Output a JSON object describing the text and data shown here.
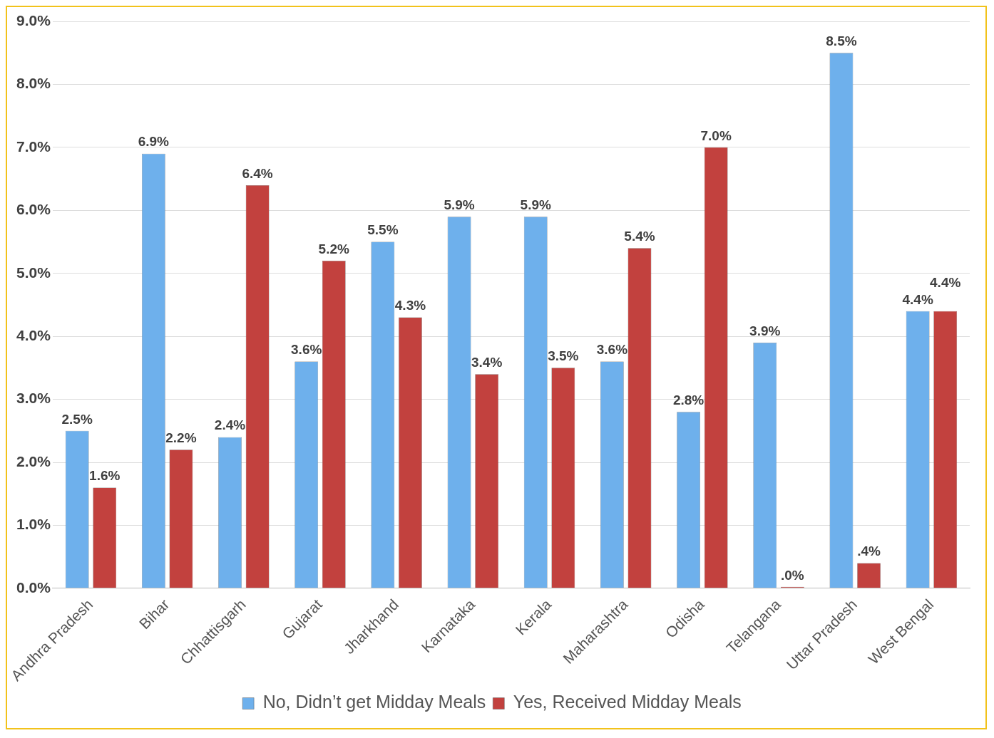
{
  "chart_data": {
    "type": "bar",
    "categories": [
      "Andhra Pradesh",
      "Bihar",
      "Chhattisgarh",
      "Gujarat",
      "Jharkhand",
      "Karnataka",
      "Kerala",
      "Maharashtra",
      "Odisha",
      "Telangana",
      "Uttar Pradesh",
      "West Bengal"
    ],
    "series": [
      {
        "name": "No, Didn’t get Midday Meals",
        "color": "#6eb0ec",
        "values": [
          2.5,
          6.9,
          2.4,
          3.6,
          5.5,
          5.9,
          5.9,
          3.6,
          2.8,
          3.9,
          8.5,
          4.4
        ],
        "value_labels": [
          "2.5%",
          "6.9%",
          "2.4%",
          "3.6%",
          "5.5%",
          "5.9%",
          "5.9%",
          "3.6%",
          "2.8%",
          "3.9%",
          "8.5%",
          "4.4%"
        ]
      },
      {
        "name": "Yes, Received Midday Meals",
        "color": "#c2413e",
        "values": [
          1.6,
          2.2,
          6.4,
          5.2,
          4.3,
          3.4,
          3.5,
          5.4,
          7.0,
          0.0,
          0.4,
          4.4
        ],
        "value_labels": [
          "1.6%",
          "2.2%",
          "6.4%",
          "5.2%",
          "4.3%",
          "3.4%",
          "3.5%",
          "5.4%",
          "7.0%",
          ".0%",
          ".4%",
          "4.4%"
        ]
      }
    ],
    "ylim": [
      0,
      9
    ],
    "yticks": [
      {
        "value": 0,
        "label": "0.0%"
      },
      {
        "value": 1,
        "label": "1.0%"
      },
      {
        "value": 2,
        "label": "2.0%"
      },
      {
        "value": 3,
        "label": "3.0%"
      },
      {
        "value": 4,
        "label": "4.0%"
      },
      {
        "value": 5,
        "label": "5.0%"
      },
      {
        "value": 6,
        "label": "6.0%"
      },
      {
        "value": 7,
        "label": "7.0%"
      },
      {
        "value": 8,
        "label": "8.0%"
      },
      {
        "value": 9,
        "label": "9.0%"
      }
    ],
    "grid": "y",
    "legend": "bottom"
  }
}
